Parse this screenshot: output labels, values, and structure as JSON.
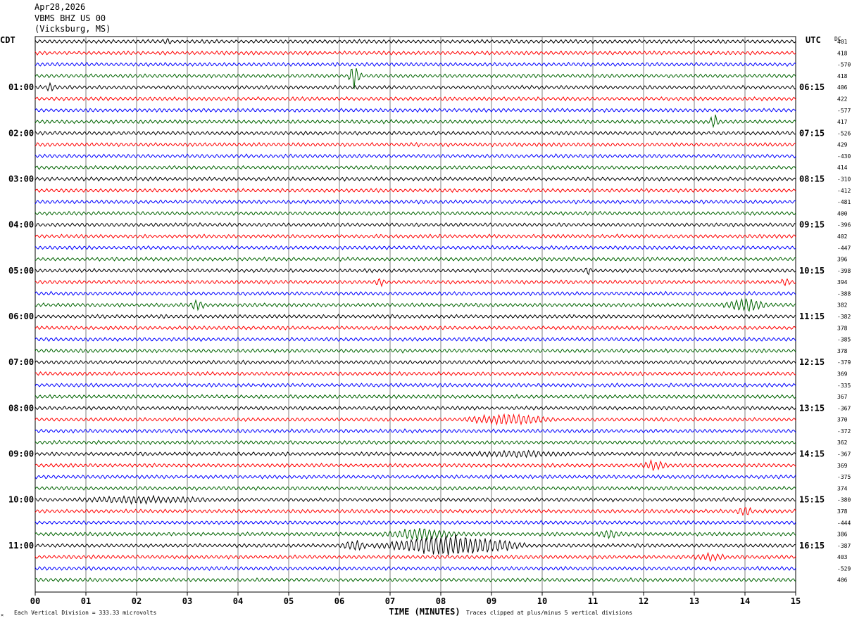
{
  "header": {
    "date": "Apr28,2026",
    "station": "VBMS BHZ US 00",
    "location": "(Vicksburg, MS)"
  },
  "labels": {
    "left_tz": "CDT",
    "right_tz": "UTC",
    "dc": "DC",
    "xlabel": "TIME (MINUTES)",
    "division": "Each Vertical Division =  333.33 microvolts",
    "clip": "Traces clipped at plus/minus 5 vertical divisions",
    "corner": "×"
  },
  "colors": {
    "cycle": [
      "#000000",
      "#ff0000",
      "#0000ff",
      "#006400"
    ],
    "grid": "#808080"
  },
  "chart_data": {
    "type": "helicorder",
    "x": {
      "label": "TIME (MINUTES)",
      "range": [
        0,
        15
      ],
      "ticks": [
        "00",
        "01",
        "02",
        "03",
        "04",
        "05",
        "06",
        "07",
        "08",
        "09",
        "10",
        "11",
        "12",
        "13",
        "14",
        "15"
      ]
    },
    "trace_minutes": 15,
    "trace_count": 48,
    "left_hour_labels": [
      "01:00",
      "02:00",
      "03:00",
      "04:00",
      "05:00",
      "06:00",
      "07:00",
      "08:00",
      "09:00",
      "10:00",
      "11:00"
    ],
    "right_hour_labels": [
      "06:15",
      "07:15",
      "08:15",
      "09:15",
      "10:15",
      "11:15",
      "12:15",
      "13:15",
      "14:15",
      "15:15",
      "16:15"
    ],
    "hour_label_every": 4,
    "hour_label_first_trace": 4,
    "dc_offsets": [
      "401",
      "418",
      "-570",
      "418",
      "406",
      "422",
      "-577",
      "417",
      "-526",
      "429",
      "-430",
      "414",
      "-310",
      "-412",
      "-481",
      "400",
      "-396",
      "402",
      "-447",
      "396",
      "-398",
      "394",
      "-388",
      "382",
      "-382",
      "378",
      "-385",
      "378",
      "-379",
      "369",
      "-335",
      "367",
      "-367",
      "370",
      "-372",
      "362",
      "-367",
      "369",
      "-375",
      "374",
      "-380",
      "378",
      "-444",
      "386",
      "-387",
      "403",
      "-529",
      "406"
    ],
    "events": [
      {
        "trace": 0,
        "minute": 2.6,
        "amp": 4,
        "dur": 0.1
      },
      {
        "trace": 3,
        "minute": 6.3,
        "amp": 18,
        "dur": 0.15
      },
      {
        "trace": 4,
        "minute": 0.3,
        "amp": 5,
        "dur": 0.1
      },
      {
        "trace": 7,
        "minute": 13.4,
        "amp": 10,
        "dur": 0.12
      },
      {
        "trace": 21,
        "minute": 6.8,
        "amp": 6,
        "dur": 0.1
      },
      {
        "trace": 21,
        "minute": 14.8,
        "amp": 6,
        "dur": 0.1
      },
      {
        "trace": 20,
        "minute": 10.9,
        "amp": 5,
        "dur": 0.1
      },
      {
        "trace": 23,
        "minute": 3.2,
        "amp": 8,
        "dur": 0.15
      },
      {
        "trace": 23,
        "minute": 14.0,
        "amp": 9,
        "dur": 0.5
      },
      {
        "trace": 33,
        "minute": 9.3,
        "amp": 7,
        "dur": 1.0
      },
      {
        "trace": 37,
        "minute": 12.2,
        "amp": 6,
        "dur": 0.3
      },
      {
        "trace": 36,
        "minute": 9.5,
        "amp": 3,
        "dur": 1.2
      },
      {
        "trace": 40,
        "minute": 2.1,
        "amp": 4,
        "dur": 1.5
      },
      {
        "trace": 41,
        "minute": 14.0,
        "amp": 6,
        "dur": 0.2
      },
      {
        "trace": 43,
        "minute": 7.6,
        "amp": 8,
        "dur": 0.8
      },
      {
        "trace": 43,
        "minute": 11.3,
        "amp": 5,
        "dur": 0.3
      },
      {
        "trace": 44,
        "minute": 8.2,
        "amp": 15,
        "dur": 1.6
      },
      {
        "trace": 44,
        "minute": 6.3,
        "amp": 6,
        "dur": 0.3
      },
      {
        "trace": 45,
        "minute": 13.3,
        "amp": 4,
        "dur": 0.4
      }
    ]
  }
}
